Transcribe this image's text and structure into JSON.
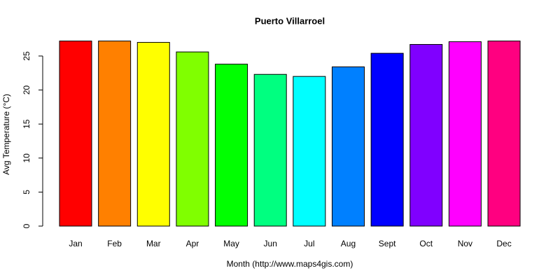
{
  "chart_data": {
    "type": "bar",
    "title": "Puerto Villarroel",
    "x_label": "Month (http://www.maps4gis.com)",
    "y_label": "Avg Temperature (°C)",
    "categories": [
      "Jan",
      "Feb",
      "Mar",
      "Apr",
      "May",
      "Jun",
      "Jul",
      "Aug",
      "Sept",
      "Oct",
      "Nov",
      "Dec"
    ],
    "values": [
      27.2,
      27.2,
      27.0,
      25.6,
      23.8,
      22.3,
      22.0,
      23.4,
      25.4,
      26.7,
      27.1,
      27.2
    ],
    "colors": [
      "#FF0000",
      "#FF8000",
      "#FFFF00",
      "#80FF00",
      "#00FF00",
      "#00FF80",
      "#00FFFF",
      "#0080FF",
      "#0000FF",
      "#8000FF",
      "#FF00FF",
      "#FF0080"
    ],
    "ylim": [
      0,
      25
    ],
    "yticks": [
      0,
      5,
      10,
      15,
      20,
      25
    ],
    "grid": false
  }
}
